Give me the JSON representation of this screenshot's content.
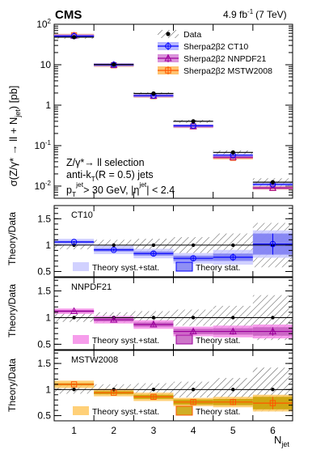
{
  "header": {
    "experiment": "CMS",
    "lumi": "4.9 fb",
    "lumi_exp": "-1",
    "energy": "(7 TeV)"
  },
  "chart_data": {
    "type": "scatter",
    "xlabel_main": "N",
    "xlabel_sub": "jet",
    "ylabel_top": "σ(Z/γ* → ll + N",
    "ylabel_top_sub": "jet",
    "ylabel_top_end": ") [pb]",
    "ylabel_ratio": "Theory/Data",
    "x": [
      1,
      2,
      3,
      4,
      5,
      6
    ],
    "xticks": [
      "1",
      "2",
      "3",
      "4",
      "5",
      "6"
    ],
    "top_panel": {
      "yscale": "log",
      "ylim": [
        0.005,
        100
      ],
      "yticks": [
        {
          "mantissa": "10",
          "exp": "-2"
        },
        {
          "mantissa": "10",
          "exp": "-1"
        },
        {
          "mantissa": "1",
          "exp": ""
        },
        {
          "mantissa": "10",
          "exp": ""
        },
        {
          "mantissa": "10",
          "exp": "2"
        }
      ],
      "data": [
        48.0,
        10.1,
        1.95,
        0.4,
        0.068,
        0.0125
      ],
      "data_unc_rel": [
        0.05,
        0.06,
        0.07,
        0.09,
        0.12,
        0.25
      ],
      "ct10": [
        51.0,
        10.0,
        1.72,
        0.31,
        0.058,
        0.011
      ],
      "nnpdf": [
        52.0,
        9.9,
        1.7,
        0.3,
        0.052,
        0.009
      ],
      "mstw": [
        53.0,
        9.7,
        1.68,
        0.3,
        0.05,
        0.009
      ],
      "legend": [
        "Data",
        "Sherpa2β2 CT10",
        "Sherpa2β2 NNPDF21",
        "Sherpa2β2 MSTW2008"
      ],
      "annotation": [
        "Z/γ*→ ll selection",
        "anti-k",
        "(R = 0.5) jets",
        "p",
        "jet",
        "> 30 GeV, |η",
        "jet",
        "| < 2.4"
      ]
    },
    "ratio_yticks": [
      "0.5",
      "1",
      "1.5"
    ],
    "ratio_ylim": [
      0.4,
      1.75
    ],
    "ratio_panels": [
      {
        "label": "CT10",
        "values": [
          1.06,
          0.91,
          0.84,
          0.75,
          0.77,
          1.02
        ],
        "syst_halfwidth": [
          0.06,
          0.08,
          0.09,
          0.1,
          0.14,
          0.26
        ],
        "stat_halfwidth": [
          0.02,
          0.03,
          0.04,
          0.05,
          0.07,
          0.2
        ],
        "data_band": [
          0.08,
          0.1,
          0.12,
          0.15,
          0.22,
          0.42
        ],
        "color": "#0000ff",
        "fill_syst": "#c9c9ff",
        "fill_stat": "#7b7bf2",
        "marker": "circle",
        "legend": [
          "Theory syst.+stat.",
          "Theory stat."
        ]
      },
      {
        "label": "NNPDF21",
        "values": [
          1.12,
          0.96,
          0.87,
          0.74,
          0.74,
          0.74
        ],
        "syst_halfwidth": [
          0.05,
          0.07,
          0.08,
          0.09,
          0.11,
          0.13
        ],
        "stat_halfwidth": [
          0.02,
          0.03,
          0.04,
          0.05,
          0.06,
          0.08
        ],
        "data_band": [
          0.08,
          0.1,
          0.12,
          0.15,
          0.22,
          0.42
        ],
        "color": "#9b009b",
        "fill_syst": "#f58ce8",
        "fill_stat": "#c45ec0",
        "marker": "triangle",
        "legend": [
          "Theory syst.+stat.",
          "Theory stat."
        ]
      },
      {
        "label": "MSTW2008",
        "values": [
          1.1,
          0.94,
          0.86,
          0.76,
          0.76,
          0.74
        ],
        "syst_halfwidth": [
          0.07,
          0.07,
          0.08,
          0.08,
          0.1,
          0.16
        ],
        "stat_halfwidth": [
          0.02,
          0.03,
          0.04,
          0.05,
          0.06,
          0.12
        ],
        "data_band": [
          0.08,
          0.1,
          0.12,
          0.15,
          0.22,
          0.42
        ],
        "color": "#ff5500",
        "fill_syst": "#ffc860",
        "fill_stat": "#c8a000",
        "marker": "square",
        "legend": [
          "Theory syst.+stat.",
          "Theory stat."
        ]
      }
    ],
    "colors": {
      "data": "#000000",
      "ct10": "#0000ff",
      "ct10_fill": "#9999ff",
      "nnpdf": "#9b009b",
      "nnpdf_fill": "#cc66cc",
      "mstw": "#ff5500",
      "mstw_fill": "#ffaa33"
    }
  }
}
